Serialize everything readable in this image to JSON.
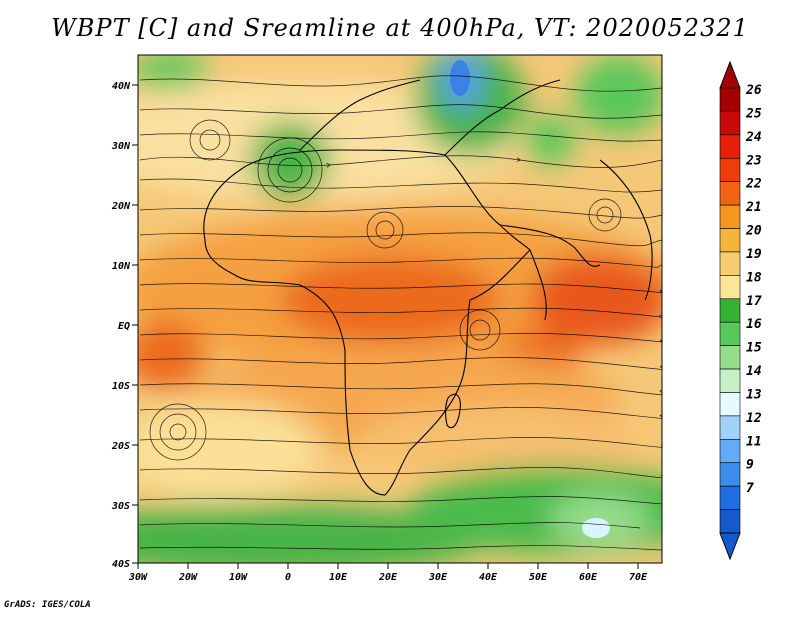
{
  "title": "WBPT [C] and Sreamline at 400hPa, VT: 2020052321",
  "credit": "GrADS: IGES/COLA",
  "map": {
    "x_ticks": [
      "30W",
      "20W",
      "10W",
      "0",
      "10E",
      "20E",
      "30E",
      "40E",
      "50E",
      "60E",
      "70E"
    ],
    "y_ticks": [
      "40N",
      "30N",
      "20N",
      "10N",
      "EQ",
      "10S",
      "20S",
      "30S",
      "40S"
    ]
  },
  "colorbar": {
    "labels": [
      "26",
      "25",
      "24",
      "23",
      "22",
      "21",
      "20",
      "19",
      "18",
      "17",
      "16",
      "15",
      "14",
      "13",
      "12",
      "11",
      "9",
      "7"
    ],
    "colors": [
      "#a50000",
      "#c80a0a",
      "#e61e0a",
      "#f03c0a",
      "#f06414",
      "#f5961e",
      "#f5b43c",
      "#f5cd6e",
      "#fae696",
      "#32b432",
      "#5ac85a",
      "#96dc8c",
      "#c8f0c8",
      "#e6faff",
      "#a0d2fa",
      "#64aaf5",
      "#3c8ceb",
      "#1e6ee1",
      "#145acd"
    ]
  },
  "chart_data": {
    "type": "heatmap",
    "variable": "WBPT [C]",
    "level": "400hPa",
    "valid_time": "2020052321",
    "x_range": [
      "30W",
      "75E"
    ],
    "y_range": [
      "40S",
      "45N"
    ],
    "color_levels": [
      7,
      9,
      11,
      12,
      13,
      14,
      15,
      16,
      17,
      18,
      19,
      20,
      21,
      22,
      23,
      24,
      25,
      26
    ]
  }
}
